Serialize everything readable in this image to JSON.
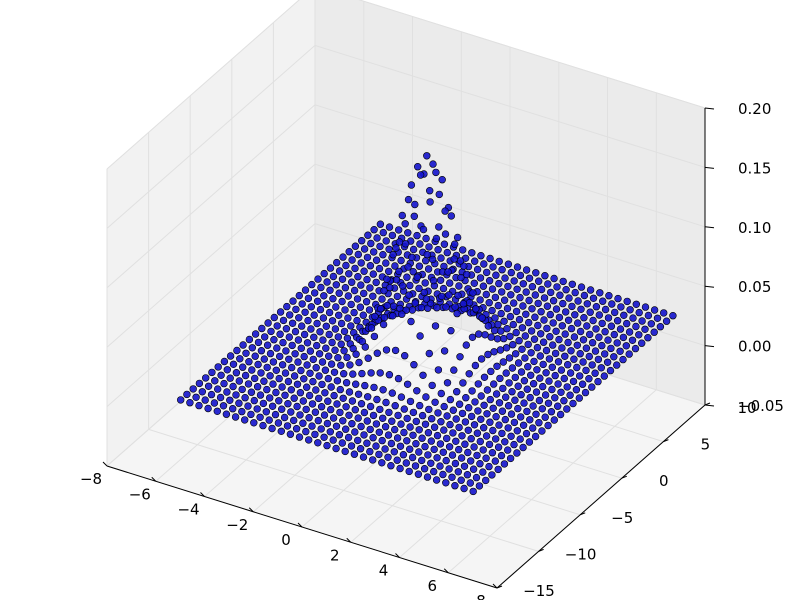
{
  "chart_data": {
    "type": "scatter",
    "projection": "3d",
    "title": "",
    "xlabel": "",
    "ylabel": "",
    "zlabel": "",
    "xlim": [
      -8,
      8
    ],
    "ylim": [
      -15,
      10
    ],
    "zlim": [
      -0.05,
      0.2
    ],
    "xticks": [
      "−8",
      "−6",
      "−4",
      "−2",
      "0",
      "2",
      "4",
      "6",
      "8"
    ],
    "yticks": [
      "−15",
      "−10",
      "−5",
      "0",
      "5",
      "10"
    ],
    "zticks": [
      "−0.05",
      "0.00",
      "0.05",
      "0.10",
      "0.15",
      "0.20"
    ],
    "grid": true,
    "surface": {
      "function": "bivariate gaussian surface sampled on a grid",
      "x_range": [
        -6,
        6
      ],
      "y_range": [
        -12,
        12
      ],
      "peak_value": 0.17,
      "peak_location": [
        0,
        0
      ]
    },
    "marker_color": "#1414cc",
    "marker_edge_color": "#000000"
  }
}
